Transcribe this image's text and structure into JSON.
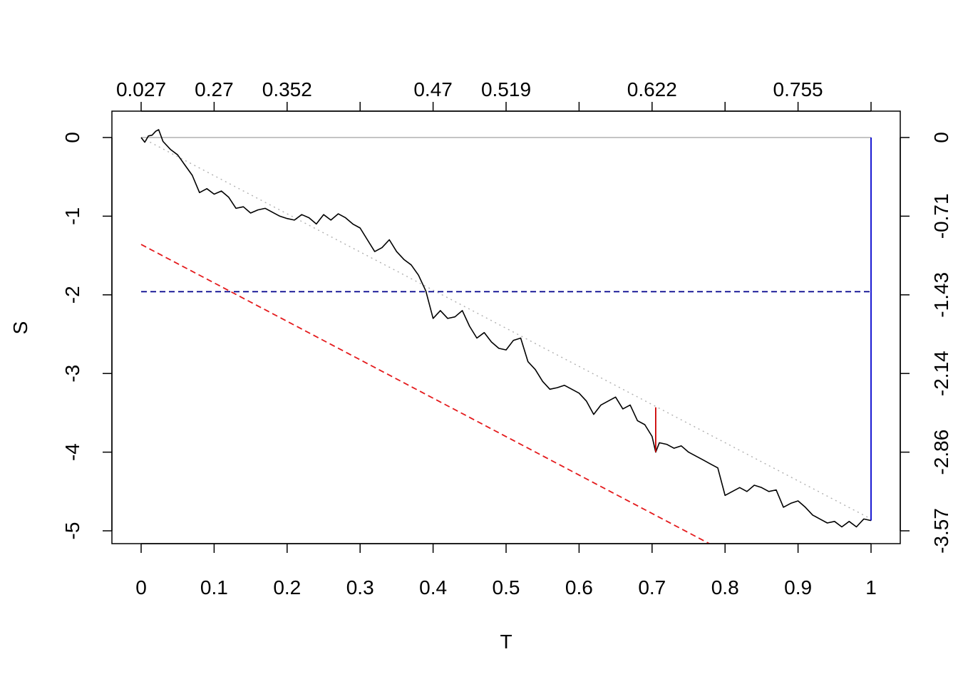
{
  "chart_data": {
    "type": "line",
    "xlabel": "T",
    "ylabel": "S",
    "xlim": [
      0,
      1
    ],
    "ylim": [
      -5,
      0
    ],
    "x_ticks": [
      "0",
      "0.1",
      "0.2",
      "0.3",
      "0.4",
      "0.5",
      "0.6",
      "0.7",
      "0.8",
      "0.9",
      "1"
    ],
    "y_ticks": [
      "0",
      "-1",
      "-2",
      "-3",
      "-4",
      "-5"
    ],
    "top_axis": {
      "tick_positions": [
        0,
        0.1,
        0.2,
        0.3,
        0.4,
        0.5,
        0.6,
        0.7,
        0.8,
        0.9,
        1
      ],
      "labels": [
        "0.027",
        "0.27",
        "0.352",
        "",
        "0.47",
        "0.519",
        "",
        "0.622",
        "",
        "0.755",
        ""
      ]
    },
    "right_axis": {
      "tick_positions": [
        0,
        -1,
        -2,
        -3,
        -4,
        -5
      ],
      "labels": [
        "0",
        "-0.71",
        "-1.43",
        "-2.14",
        "-2.86",
        "-3.57"
      ]
    },
    "series": [
      {
        "role": "path",
        "color": "#000000",
        "style": "solid",
        "x": [
          0,
          0.005,
          0.01,
          0.015,
          0.02,
          0.024,
          0.03,
          0.04,
          0.05,
          0.06,
          0.07,
          0.08,
          0.09,
          0.1,
          0.11,
          0.12,
          0.13,
          0.14,
          0.15,
          0.16,
          0.17,
          0.18,
          0.19,
          0.2,
          0.21,
          0.22,
          0.23,
          0.24,
          0.25,
          0.26,
          0.27,
          0.28,
          0.29,
          0.3,
          0.31,
          0.32,
          0.33,
          0.34,
          0.35,
          0.36,
          0.37,
          0.38,
          0.39,
          0.4,
          0.41,
          0.42,
          0.43,
          0.44,
          0.45,
          0.46,
          0.47,
          0.48,
          0.49,
          0.5,
          0.51,
          0.52,
          0.53,
          0.54,
          0.55,
          0.56,
          0.57,
          0.58,
          0.59,
          0.6,
          0.61,
          0.62,
          0.63,
          0.64,
          0.65,
          0.66,
          0.67,
          0.68,
          0.69,
          0.7,
          0.705,
          0.71,
          0.72,
          0.73,
          0.74,
          0.75,
          0.76,
          0.77,
          0.78,
          0.79,
          0.8,
          0.81,
          0.82,
          0.83,
          0.84,
          0.85,
          0.86,
          0.87,
          0.88,
          0.89,
          0.9,
          0.91,
          0.92,
          0.93,
          0.94,
          0.95,
          0.96,
          0.97,
          0.98,
          0.99,
          1
        ],
        "y": [
          0,
          -0.06,
          0.02,
          0.03,
          0.08,
          0.1,
          -0.05,
          -0.15,
          -0.22,
          -0.35,
          -0.48,
          -0.7,
          -0.65,
          -0.72,
          -0.68,
          -0.76,
          -0.9,
          -0.88,
          -0.96,
          -0.92,
          -0.9,
          -0.95,
          -1.0,
          -1.03,
          -1.05,
          -0.98,
          -1.02,
          -1.1,
          -0.98,
          -1.05,
          -0.97,
          -1.02,
          -1.1,
          -1.15,
          -1.3,
          -1.45,
          -1.4,
          -1.3,
          -1.45,
          -1.55,
          -1.62,
          -1.75,
          -1.95,
          -2.3,
          -2.2,
          -2.3,
          -2.28,
          -2.2,
          -2.4,
          -2.55,
          -2.48,
          -2.6,
          -2.68,
          -2.7,
          -2.58,
          -2.55,
          -2.85,
          -2.95,
          -3.1,
          -3.2,
          -3.18,
          -3.15,
          -3.2,
          -3.25,
          -3.35,
          -3.52,
          -3.4,
          -3.35,
          -3.3,
          -3.45,
          -3.4,
          -3.6,
          -3.65,
          -3.8,
          -4.0,
          -3.88,
          -3.9,
          -3.95,
          -3.92,
          -4.0,
          -4.05,
          -4.1,
          -4.15,
          -4.2,
          -4.55,
          -4.5,
          -4.45,
          -4.5,
          -4.42,
          -4.45,
          -4.5,
          -4.48,
          -4.7,
          -4.65,
          -4.62,
          -4.7,
          -4.8,
          -4.85,
          -4.9,
          -4.88,
          -4.95,
          -4.88,
          -4.95,
          -4.85,
          -4.87
        ]
      },
      {
        "role": "trend",
        "color": "#b0b0b0",
        "style": "dotted",
        "x": [
          0,
          1
        ],
        "y": [
          0,
          -4.85
        ]
      },
      {
        "role": "zero-level",
        "color": "#b0b0b0",
        "style": "solid",
        "x": [
          0,
          1
        ],
        "y": [
          0,
          0
        ]
      },
      {
        "role": "lower-bound",
        "color": "#e41a1c",
        "style": "dashed",
        "x": [
          0,
          0.782
        ],
        "y": [
          -1.36,
          -5.18
        ]
      },
      {
        "role": "level",
        "color": "#00008b",
        "style": "dashed",
        "x": [
          0,
          1
        ],
        "y": [
          -1.96,
          -1.96
        ]
      },
      {
        "role": "marker-red",
        "color": "#cc0000",
        "style": "solid",
        "x": [
          0.705,
          0.705
        ],
        "y": [
          -3.43,
          -4.0
        ]
      },
      {
        "role": "marker-blue",
        "color": "#0000cd",
        "style": "solid",
        "x": [
          1,
          1
        ],
        "y": [
          0,
          -4.87
        ]
      }
    ]
  }
}
